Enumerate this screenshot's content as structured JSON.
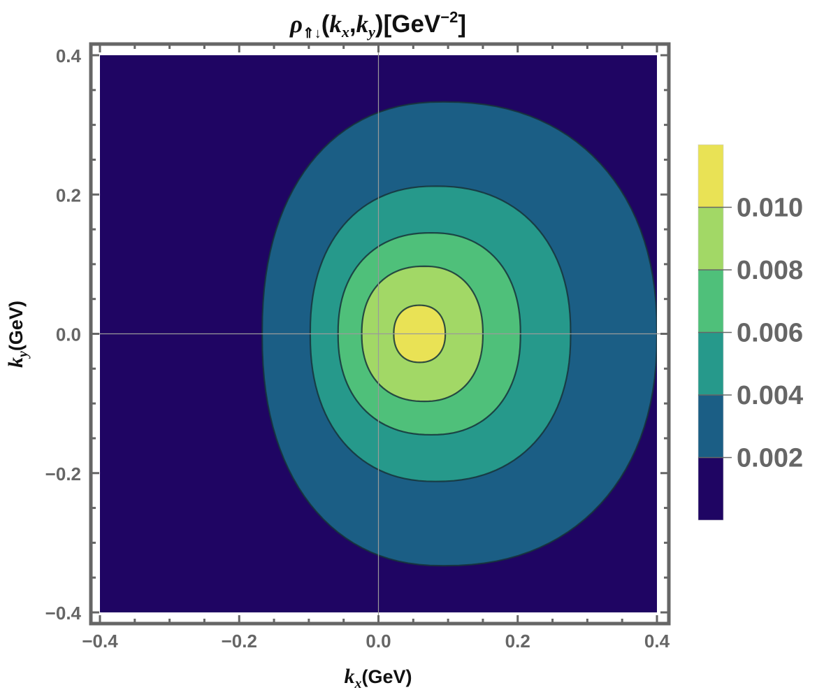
{
  "chart_data": {
    "type": "heatmap",
    "subtype": "contour",
    "title": {
      "rho": "ρ",
      "sub": "⇑↓",
      "open": "(",
      "kx": "k",
      "kx_sub": "x",
      "comma": ",",
      "ky": "k",
      "ky_sub": "y",
      "close": ")",
      "unit_open": "[GeV",
      "unit_sup": "−2",
      "unit_close": "]"
    },
    "xlabel": {
      "symbol": "k",
      "sub": "x",
      "unit": "(GeV)"
    },
    "ylabel": {
      "symbol": "k",
      "sub": "y",
      "unit": "(GeV)"
    },
    "xlim": [
      -0.4,
      0.4
    ],
    "ylim": [
      -0.4,
      0.4
    ],
    "x_ticks": [
      {
        "value": -0.4,
        "label": "−0.4"
      },
      {
        "value": -0.2,
        "label": "−0.2"
      },
      {
        "value": 0.0,
        "label": "0.0"
      },
      {
        "value": 0.2,
        "label": "0.2"
      },
      {
        "value": 0.4,
        "label": "0.4"
      }
    ],
    "y_ticks": [
      {
        "value": -0.4,
        "label": "−0.4"
      },
      {
        "value": -0.2,
        "label": "−0.2"
      },
      {
        "value": 0.0,
        "label": "0.0"
      },
      {
        "value": 0.2,
        "label": "0.2"
      },
      {
        "value": 0.4,
        "label": "0.4"
      }
    ],
    "levels": [
      {
        "from": 0.0,
        "to": 0.002,
        "color": "#1f0563"
      },
      {
        "from": 0.002,
        "to": 0.004,
        "color": "#1b5e85"
      },
      {
        "from": 0.004,
        "to": 0.006,
        "color": "#26998b"
      },
      {
        "from": 0.006,
        "to": 0.008,
        "color": "#4fc07a"
      },
      {
        "from": 0.008,
        "to": 0.01,
        "color": "#a2d866"
      },
      {
        "from": 0.01,
        "to": 0.012,
        "color": "#e9e255"
      }
    ],
    "contours": [
      {
        "level": 0.002,
        "x_min": -0.167,
        "x_max": 0.4,
        "y_min": -0.333,
        "y_max": 0.333,
        "center_x": 0.093
      },
      {
        "level": 0.004,
        "x_min": -0.098,
        "x_max": 0.276,
        "y_min": -0.212,
        "y_max": 0.212,
        "center_x": 0.082
      },
      {
        "level": 0.006,
        "x_min": -0.058,
        "x_max": 0.204,
        "y_min": -0.145,
        "y_max": 0.145,
        "center_x": 0.076
      },
      {
        "level": 0.008,
        "x_min": -0.024,
        "x_max": 0.15,
        "y_min": -0.097,
        "y_max": 0.097,
        "center_x": 0.066
      },
      {
        "level": 0.01,
        "x_min": 0.022,
        "x_max": 0.096,
        "y_min": -0.041,
        "y_max": 0.041,
        "center_x": 0.059
      }
    ],
    "colorbar": {
      "range": [
        0.0,
        0.012
      ],
      "tick_labels": [
        {
          "value": 0.002,
          "label": "0.002"
        },
        {
          "value": 0.004,
          "label": "0.004"
        },
        {
          "value": 0.006,
          "label": "0.006"
        },
        {
          "value": 0.008,
          "label": "0.008"
        },
        {
          "value": 0.01,
          "label": "0.010"
        }
      ]
    },
    "grid": false,
    "reference_lines": {
      "x": 0.0,
      "y": 0.0
    },
    "frame_color": "#666666",
    "legend_position": "right"
  }
}
